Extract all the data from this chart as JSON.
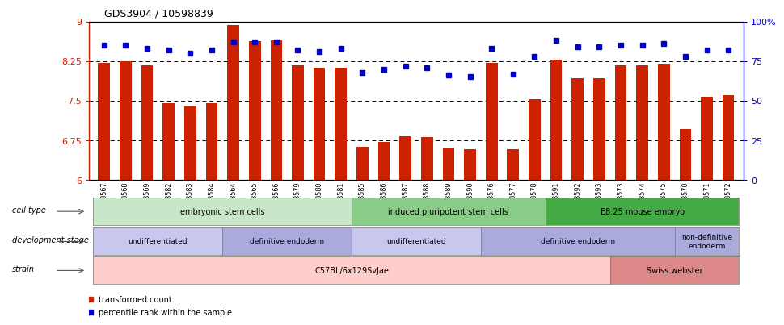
{
  "title": "GDS3904 / 10598839",
  "bar_color": "#cc2200",
  "dot_color": "#0000cc",
  "ylim_left": [
    6,
    9
  ],
  "ylim_right": [
    0,
    100
  ],
  "yticks_left": [
    6,
    6.75,
    7.5,
    8.25,
    9
  ],
  "ytick_labels_left": [
    "6",
    "6.75",
    "7.5",
    "8.25",
    "9"
  ],
  "yticks_right": [
    0,
    25,
    50,
    75,
    100
  ],
  "ytick_labels_right": [
    "0",
    "25",
    "50",
    "75",
    "100%"
  ],
  "hlines": [
    6.75,
    7.5,
    8.25
  ],
  "samples": [
    "GSM668567",
    "GSM668568",
    "GSM668569",
    "GSM668582",
    "GSM668583",
    "GSM668584",
    "GSM668564",
    "GSM668565",
    "GSM668566",
    "GSM668579",
    "GSM668580",
    "GSM668581",
    "GSM668585",
    "GSM668586",
    "GSM668587",
    "GSM668588",
    "GSM668589",
    "GSM668590",
    "GSM668576",
    "GSM668577",
    "GSM668578",
    "GSM668591",
    "GSM668592",
    "GSM668593",
    "GSM668573",
    "GSM668574",
    "GSM668575",
    "GSM668570",
    "GSM668571",
    "GSM668572"
  ],
  "bar_values": [
    8.22,
    8.24,
    8.17,
    7.46,
    7.4,
    7.46,
    8.93,
    8.63,
    8.64,
    8.17,
    8.12,
    8.13,
    6.63,
    6.72,
    6.83,
    6.82,
    6.62,
    6.59,
    8.22,
    6.59,
    7.53,
    8.27,
    7.93,
    7.93,
    8.17,
    8.17,
    8.2,
    6.96,
    7.58,
    7.6
  ],
  "dot_values": [
    85,
    85,
    83,
    82,
    80,
    82,
    87,
    87,
    87,
    82,
    81,
    83,
    68,
    70,
    72,
    71,
    66,
    65,
    83,
    67,
    78,
    88,
    84,
    84,
    85,
    85,
    86,
    78,
    82,
    82
  ],
  "cell_type_groups": [
    {
      "label": "embryonic stem cells",
      "start": 0,
      "end": 11,
      "color": "#c8e6c8"
    },
    {
      "label": "induced pluripotent stem cells",
      "start": 12,
      "end": 20,
      "color": "#88cc88"
    },
    {
      "label": "E8.25 mouse embryo",
      "start": 21,
      "end": 29,
      "color": "#44aa44"
    }
  ],
  "dev_stage_groups": [
    {
      "label": "undifferentiated",
      "start": 0,
      "end": 5,
      "color": "#c8c8ee"
    },
    {
      "label": "definitive endoderm",
      "start": 6,
      "end": 11,
      "color": "#aaaadd"
    },
    {
      "label": "undifferentiated",
      "start": 12,
      "end": 17,
      "color": "#c8c8ee"
    },
    {
      "label": "definitive endoderm",
      "start": 18,
      "end": 26,
      "color": "#aaaadd"
    },
    {
      "label": "non-definitive\nendoderm",
      "start": 27,
      "end": 29,
      "color": "#aaaadd"
    }
  ],
  "strain_groups": [
    {
      "label": "C57BL/6x129SvJae",
      "start": 0,
      "end": 23,
      "color": "#ffcccc"
    },
    {
      "label": "Swiss webster",
      "start": 24,
      "end": 29,
      "color": "#dd8888"
    }
  ],
  "label_arrow_color": "#555555",
  "spine_color": "#000000",
  "tick_label_bg": "#dddddd"
}
